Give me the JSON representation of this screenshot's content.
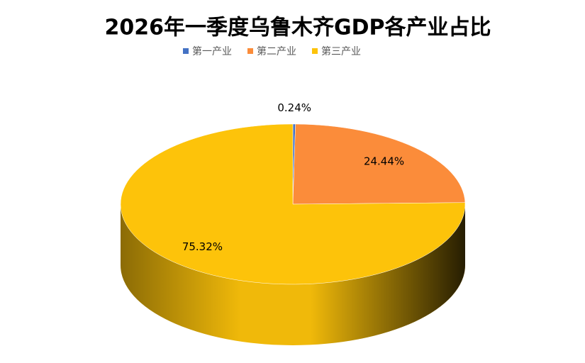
{
  "chart_data": {
    "type": "pie3d",
    "title": "2026年一季度乌鲁木齐GDP各产业占比",
    "categories": [
      "第一产业",
      "第二产业",
      "第三产业"
    ],
    "values": [
      0.24,
      24.44,
      75.32
    ],
    "value_labels": [
      "0.24%",
      "24.44%",
      "75.32%"
    ],
    "colors": [
      "#4472c4",
      "#fb8c3a",
      "#fdc30a"
    ],
    "legend": "top"
  }
}
